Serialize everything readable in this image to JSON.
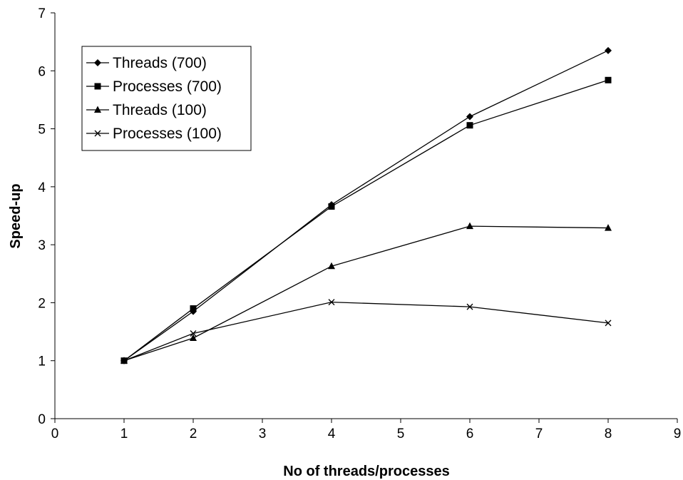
{
  "chart_data": {
    "type": "line",
    "title": "",
    "xlabel": "No of threads/processes",
    "ylabel": "Speed-up",
    "xlim": [
      0,
      9
    ],
    "ylim": [
      0,
      7
    ],
    "x_ticks": [
      0,
      1,
      2,
      3,
      4,
      5,
      6,
      7,
      8,
      9
    ],
    "y_ticks": [
      0,
      1,
      2,
      3,
      4,
      5,
      6,
      7
    ],
    "grid": false,
    "legend_position": "top-left",
    "x": [
      1,
      2,
      4,
      6,
      8
    ],
    "series": [
      {
        "name": "Threads (700)",
        "marker": "diamond",
        "color": "#000000",
        "values": [
          1.0,
          1.85,
          3.69,
          5.21,
          6.35
        ]
      },
      {
        "name": "Processes (700)",
        "marker": "square",
        "color": "#000000",
        "values": [
          1.0,
          1.9,
          3.66,
          5.06,
          5.84
        ]
      },
      {
        "name": "Threads (100)",
        "marker": "triangle",
        "color": "#000000",
        "values": [
          1.0,
          1.39,
          2.63,
          3.32,
          3.29
        ]
      },
      {
        "name": "Processes (100)",
        "marker": "cross",
        "color": "#000000",
        "values": [
          1.0,
          1.47,
          2.01,
          1.93,
          1.65
        ]
      }
    ]
  }
}
